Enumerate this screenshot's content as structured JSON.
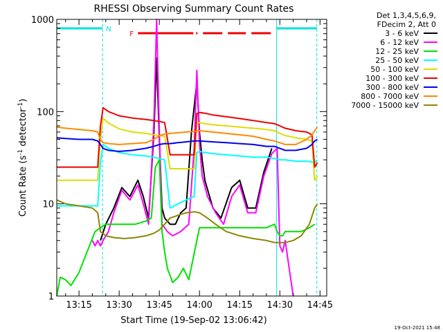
{
  "chart_data": {
    "type": "line",
    "title": "RHESSI Observing Summary Count Rates",
    "xlabel": "Start Time (19-Sep-02 13:06:42)",
    "ylabel_main": "Count Rate (s",
    "ylabel_sup1": "-1",
    "ylabel_mid": " detector",
    "ylabel_sup2": "-1",
    "ylabel_end": ")",
    "yscale": "log",
    "ylim": [
      1,
      1000
    ],
    "xlim_minutes": [
      6.7,
      107.5
    ],
    "x_tick_labels": [
      "13:15",
      "13:30",
      "13:45",
      "14:00",
      "14:15",
      "14:30",
      "14:45"
    ],
    "x_tick_minutes": [
      15,
      30,
      45,
      60,
      75,
      90,
      105
    ],
    "y_tick_labels": [
      "1",
      "10",
      "100",
      "1000"
    ],
    "y_tick_values": [
      1,
      10,
      100,
      1000
    ],
    "legend_header": [
      "Det 1,3,4,5,6,9,",
      "FDecim 2, Att 0"
    ],
    "legend_position": "right",
    "flag_labels": {
      "night": "N",
      "flare": "F"
    },
    "colors": {
      "night": "#00e0e0",
      "flare": "#ee0000"
    },
    "night_intervals": [
      [
        6.7,
        23.8
      ],
      [
        88.8,
        103.8
      ]
    ],
    "flare_interval": [
      37.0,
      88.5
    ],
    "footer_date": "19-Oct-2021 15:48",
    "series": [
      {
        "name": "3 - 6 keV",
        "color": "#000000",
        "x": [
          6.7,
          20,
          22.5,
          23,
          25,
          28,
          31,
          34,
          37,
          39,
          41,
          43,
          44,
          45,
          46,
          47,
          49,
          51,
          53,
          55,
          57,
          59,
          60,
          61,
          62,
          65,
          68,
          72,
          75,
          78,
          81,
          84,
          87,
          89.5
        ],
        "y": [
          null,
          null,
          null,
          4,
          6,
          9,
          15,
          12,
          18,
          12,
          7,
          60,
          380,
          50,
          9,
          7,
          6,
          6,
          8,
          9,
          60,
          210,
          60,
          30,
          18,
          9,
          7,
          15,
          18,
          9,
          9,
          22,
          40,
          null
        ]
      },
      {
        "name": "6 - 12 keV",
        "color": "#ff00ff",
        "x": [
          20,
          21,
          22,
          23,
          24,
          26,
          28,
          31,
          34,
          37,
          39,
          41,
          43,
          44,
          45,
          46,
          48,
          50,
          53,
          56,
          58,
          59,
          60,
          61,
          63,
          66,
          69,
          72,
          75,
          78,
          81,
          84,
          87,
          89,
          90,
          91,
          92,
          93,
          95
        ],
        "y": [
          4,
          3.5,
          4,
          3.5,
          4,
          5,
          8,
          14,
          11,
          16,
          10,
          6,
          80,
          1000,
          60,
          6,
          5,
          4.5,
          5,
          6,
          40,
          280,
          45,
          20,
          12,
          8,
          6,
          12,
          16,
          8,
          8,
          20,
          35,
          40,
          3.5,
          3,
          4,
          2.5,
          1
        ]
      },
      {
        "name": "12 - 25 keV",
        "color": "#00e000",
        "x": [
          6.7,
          8,
          10,
          12,
          15,
          18,
          21,
          23,
          25,
          28,
          32,
          36,
          40,
          42,
          43.5,
          45,
          46,
          47,
          48,
          50,
          52,
          54,
          56,
          60,
          65,
          70,
          75,
          80,
          85,
          88,
          89,
          90,
          91,
          92,
          95,
          98,
          101,
          103,
          104
        ],
        "y": [
          1,
          1.6,
          1.5,
          1.3,
          1.8,
          3,
          5,
          5.5,
          6,
          6,
          6,
          6,
          6.5,
          7,
          25,
          30,
          5,
          3,
          2,
          1.4,
          1.6,
          2,
          1.5,
          5.5,
          5.5,
          5.5,
          5.5,
          5.5,
          5.5,
          6,
          5,
          4.5,
          4.5,
          5,
          5,
          5,
          5.5,
          6,
          null
        ]
      },
      {
        "name": "25 - 50 keV",
        "color": "#00ffff",
        "x": [
          6.7,
          10,
          15,
          20,
          22,
          23,
          24,
          26,
          30,
          35,
          40,
          43,
          45,
          47,
          49,
          52,
          55,
          58,
          59,
          60,
          62,
          65,
          70,
          75,
          80,
          85,
          88,
          90,
          92,
          96,
          100,
          103,
          104
        ],
        "y": [
          9.5,
          9.5,
          9.5,
          9.5,
          9.5,
          28,
          44,
          40,
          36,
          34,
          33,
          32,
          31,
          30,
          9,
          10,
          11,
          12,
          36,
          37,
          36,
          35,
          34,
          33,
          32,
          32,
          31,
          30,
          30,
          29,
          29,
          28,
          30
        ]
      },
      {
        "name": "50 - 100 keV",
        "color": "#dddd00",
        "x": [
          6.7,
          10,
          15,
          20,
          22,
          23,
          24,
          26,
          30,
          35,
          40,
          43,
          45,
          47,
          49,
          52,
          55,
          58,
          59,
          60,
          62,
          65,
          70,
          75,
          80,
          85,
          88,
          90,
          92,
          96,
          100,
          102,
          103,
          104
        ],
        "y": [
          18,
          18,
          18,
          18,
          18,
          50,
          85,
          75,
          65,
          60,
          58,
          56,
          55,
          54,
          24,
          24,
          24,
          24,
          75,
          76,
          74,
          72,
          70,
          68,
          66,
          64,
          62,
          58,
          55,
          52,
          50,
          48,
          18,
          20
        ]
      },
      {
        "name": "100 - 300 keV",
        "color": "#ee0000",
        "x": [
          6.7,
          10,
          15,
          20,
          22,
          23,
          24,
          26,
          30,
          35,
          40,
          43,
          45,
          47,
          49,
          52,
          55,
          58,
          59,
          60,
          62,
          65,
          70,
          75,
          80,
          85,
          88,
          90,
          92,
          96,
          100,
          102,
          103,
          104
        ],
        "y": [
          25,
          25,
          25,
          25,
          25,
          70,
          110,
          100,
          90,
          85,
          82,
          80,
          78,
          76,
          34,
          34,
          34,
          34,
          95,
          98,
          96,
          92,
          88,
          84,
          80,
          76,
          74,
          70,
          66,
          62,
          60,
          56,
          25,
          28
        ]
      },
      {
        "name": "300 - 800 keV",
        "color": "#0000ee",
        "x": [
          6.7,
          10,
          15,
          20,
          22,
          23,
          24,
          26,
          30,
          35,
          40,
          43,
          45,
          47,
          49,
          52,
          55,
          58,
          60,
          65,
          70,
          75,
          80,
          85,
          88,
          90,
          92,
          96,
          100,
          102,
          103,
          104
        ],
        "y": [
          52,
          51,
          50,
          50,
          48,
          44,
          40,
          38,
          37,
          38,
          40,
          42,
          44,
          45,
          45,
          46,
          47,
          48,
          48,
          47,
          46,
          45,
          44,
          42,
          42,
          40,
          38,
          38,
          40,
          44,
          48,
          50
        ]
      },
      {
        "name": "800 - 7000 keV",
        "color": "#ff8800",
        "x": [
          6.7,
          10,
          15,
          20,
          22,
          23,
          24,
          26,
          30,
          35,
          40,
          43,
          45,
          47,
          49,
          52,
          55,
          58,
          60,
          65,
          70,
          75,
          80,
          85,
          88,
          90,
          92,
          96,
          100,
          102,
          103,
          104
        ],
        "y": [
          68,
          66,
          64,
          62,
          60,
          50,
          46,
          45,
          44,
          45,
          46,
          50,
          55,
          57,
          58,
          59,
          60,
          61,
          62,
          60,
          58,
          56,
          54,
          50,
          48,
          46,
          44,
          44,
          50,
          56,
          62,
          68
        ]
      },
      {
        "name": "7000 - 15000 keV",
        "color": "#888800",
        "x": [
          6.7,
          10,
          15,
          20,
          22,
          23,
          25,
          28,
          32,
          36,
          40,
          43,
          45,
          47,
          49,
          52,
          55,
          58,
          60,
          63,
          66,
          70,
          75,
          80,
          85,
          88,
          90,
          92,
          95,
          98,
          101,
          103,
          104
        ],
        "y": [
          11,
          10,
          9.5,
          9,
          8,
          5,
          4.5,
          4.3,
          4.2,
          4.3,
          4.5,
          4.8,
          5.2,
          6,
          7,
          7.5,
          8,
          8.2,
          8,
          7,
          6,
          5,
          4.5,
          4.2,
          4,
          3.8,
          3.8,
          3.8,
          4,
          4.5,
          6,
          9,
          10
        ]
      }
    ]
  }
}
